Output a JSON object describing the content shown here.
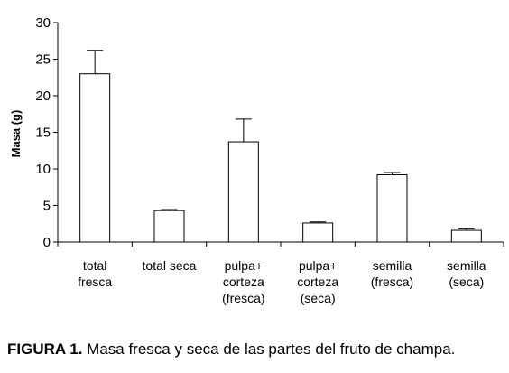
{
  "chart_data": {
    "type": "bar",
    "categories": [
      [
        "total",
        "fresca"
      ],
      [
        "total seca"
      ],
      [
        "pulpa+",
        "corteza",
        "(fresca)"
      ],
      [
        "pulpa+",
        "corteza",
        "(seca)"
      ],
      [
        "semilla",
        "(fresca)"
      ],
      [
        "semilla",
        "(seca)"
      ]
    ],
    "values": [
      23.0,
      4.3,
      13.7,
      2.6,
      9.2,
      1.6
    ],
    "errors": [
      3.2,
      0.15,
      3.1,
      0.15,
      0.3,
      0.2
    ],
    "xlabel": "",
    "ylabel": "Masa (g)",
    "ylim": [
      0,
      30
    ],
    "yticks": [
      0,
      5,
      10,
      15,
      20,
      25,
      30
    ],
    "bar_fill": "#ffffff",
    "bar_stroke": "#000000",
    "grid": false,
    "legend": false
  },
  "caption": {
    "label": "FIGURA 1.",
    "text": " Masa fresca y seca de las partes del fruto de champa."
  }
}
